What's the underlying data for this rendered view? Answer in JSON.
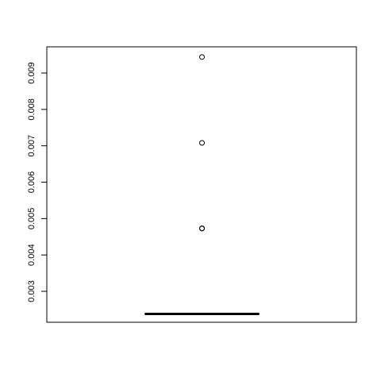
{
  "chart_data": {
    "type": "boxplot",
    "title": "",
    "xlabel": "",
    "ylabel": "",
    "ylim": [
      0.00215,
      0.00972
    ],
    "y_ticks": [
      0.003,
      0.004,
      0.005,
      0.006,
      0.007,
      0.008,
      0.009
    ],
    "y_tick_labels": [
      "0.003",
      "0.004",
      "0.005",
      "0.006",
      "0.007",
      "0.008",
      "0.009"
    ],
    "box": {
      "min": 0.00238,
      "q1": 0.00238,
      "median": 0.00238,
      "q3": 0.00238,
      "max": 0.00238
    },
    "outliers": [
      0.00944,
      0.00708,
      0.00473,
      0.00473,
      0.00473
    ],
    "grid": false,
    "colors": {
      "foreground": "#000000",
      "background": "#ffffff"
    }
  }
}
